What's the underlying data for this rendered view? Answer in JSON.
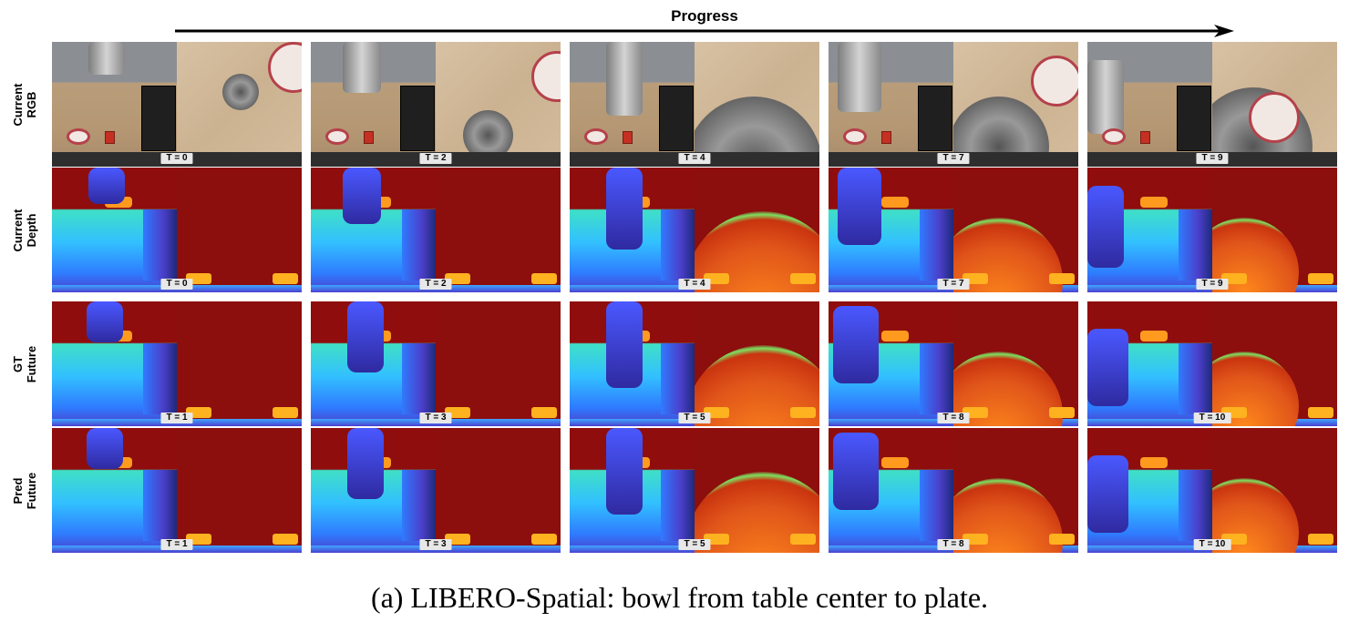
{
  "header": {
    "progress_label": "Progress"
  },
  "rows": [
    {
      "label_line1": "Current",
      "label_line2": "RGB",
      "kind": "rgb"
    },
    {
      "label_line1": "Current",
      "label_line2": "Depth",
      "kind": "depth"
    },
    {
      "label_line1": "GT",
      "label_line2": "Future",
      "kind": "depth"
    },
    {
      "label_line1": "Pred",
      "label_line2": "Future",
      "kind": "depth"
    }
  ],
  "timesteps": {
    "current": [
      "T = 0",
      "T = 2",
      "T = 4",
      "T = 7",
      "T = 9"
    ],
    "future": [
      "T = 1",
      "T = 3",
      "T = 5",
      "T = 8",
      "T = 10"
    ]
  },
  "caption": "(a) LIBERO-Spatial: bowl from table center to plate."
}
